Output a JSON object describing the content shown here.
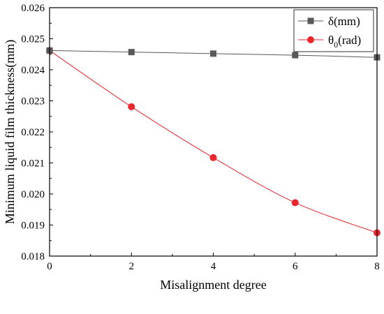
{
  "chart_data": {
    "type": "line",
    "xlabel": "Misalignment degree",
    "ylabel": "Minimum liquid film thickness(mm)",
    "xlim": [
      0,
      8
    ],
    "ylim": [
      0.018,
      0.026
    ],
    "xticks": [
      "0",
      "2",
      "4",
      "6",
      "8"
    ],
    "yticks": [
      "0.018",
      "0.019",
      "0.020",
      "0.021",
      "0.022",
      "0.023",
      "0.024",
      "0.025",
      "0.026"
    ],
    "grid": false,
    "legend_position": "top-right",
    "x": [
      0,
      2,
      4,
      6,
      8
    ],
    "series": [
      {
        "name_main": "δ",
        "name_sub": "",
        "name_rest": "(mm)",
        "color": "#595959",
        "marker": "square",
        "values": [
          0.02462,
          0.02457,
          0.02452,
          0.02447,
          0.0244
        ]
      },
      {
        "name_main": "θ",
        "name_sub": "0",
        "name_rest": "(rad)",
        "color": "#e8262e",
        "marker": "circle",
        "values": [
          0.02462,
          0.02281,
          0.02117,
          0.01972,
          0.01875
        ]
      }
    ]
  }
}
